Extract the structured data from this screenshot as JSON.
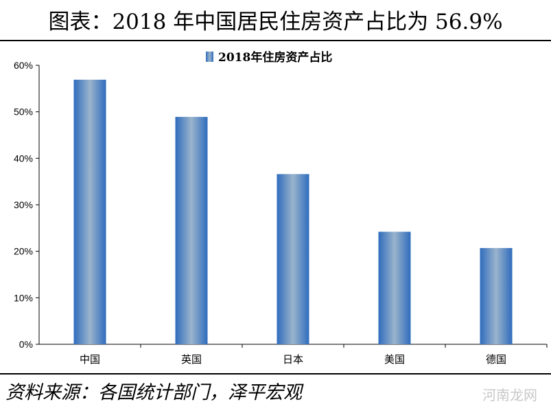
{
  "header": {
    "title": "图表：2018 年中国居民住房资产占比为 56.9%"
  },
  "footer": {
    "source": "资料来源：各国统计部门，泽平宏观",
    "watermark": "河南龙网"
  },
  "chart_data": {
    "type": "bar",
    "title": "",
    "categories": [
      "中国",
      "英国",
      "日本",
      "美国",
      "德国"
    ],
    "series": [
      {
        "name": "2018年住房资产占比",
        "values": [
          56.9,
          48.9,
          36.6,
          24.2,
          20.7
        ]
      }
    ],
    "xlabel": "",
    "ylabel": "",
    "ylim": [
      0,
      60
    ],
    "yticks": [
      "0%",
      "10%",
      "20%",
      "30%",
      "40%",
      "50%",
      "60%"
    ],
    "grid": false,
    "legend_position": "top-center",
    "colors": {
      "bar_edge": "#2f6cbd",
      "bar_center": "#9ab4cc"
    }
  }
}
